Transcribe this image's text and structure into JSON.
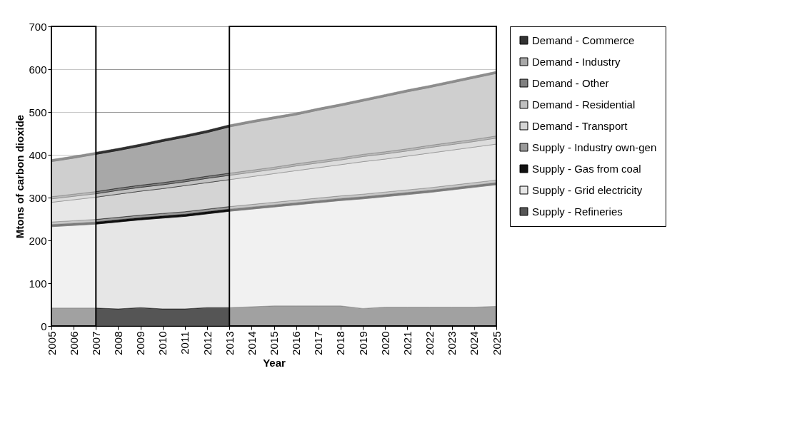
{
  "chart_data": {
    "type": "area",
    "stacked": true,
    "xlabel": "Year",
    "ylabel": "Mtons of carbon dioxide",
    "x": [
      2005,
      2006,
      2007,
      2008,
      2009,
      2010,
      2011,
      2012,
      2013,
      2014,
      2015,
      2016,
      2017,
      2018,
      2019,
      2020,
      2021,
      2022,
      2023,
      2024,
      2025
    ],
    "xlim": [
      2005,
      2025
    ],
    "xticks": [
      2005,
      2006,
      2007,
      2008,
      2009,
      2010,
      2011,
      2012,
      2013,
      2014,
      2015,
      2016,
      2017,
      2018,
      2019,
      2020,
      2021,
      2022,
      2023,
      2024,
      2025
    ],
    "ylim": [
      0,
      700
    ],
    "yticks": [
      0,
      100,
      200,
      300,
      400,
      500,
      600,
      700
    ],
    "grid": "y",
    "legend": "right",
    "series": [
      {
        "name": "Supply - Refineries",
        "color": "#555555",
        "values": [
          42,
          42,
          42,
          40,
          43,
          40,
          40,
          43,
          43,
          45,
          47,
          47,
          47,
          47,
          41,
          44,
          44,
          44,
          44,
          44,
          46
        ]
      },
      {
        "name": "Supply - Grid electricity",
        "color": "#e6e6e6",
        "values": [
          190,
          193,
          196,
          203,
          205,
          212,
          216,
          219,
          225,
          228,
          231,
          236,
          241,
          246,
          256,
          258,
          263,
          268,
          274,
          280,
          284
        ]
      },
      {
        "name": "Supply - Gas from coal",
        "color": "#111111",
        "values": [
          5,
          5,
          5,
          5,
          5,
          5,
          5,
          5,
          5,
          5,
          5,
          5,
          5,
          5,
          5,
          5,
          5,
          5,
          5,
          5,
          5
        ]
      },
      {
        "name": "Supply - Industry own-gen",
        "color": "#9a9a9a",
        "values": [
          6,
          6,
          6,
          6,
          6,
          6,
          6,
          6,
          6,
          6,
          6,
          6,
          6,
          6,
          6,
          6,
          6,
          6,
          6,
          6,
          6
        ]
      },
      {
        "name": "Demand - Transport",
        "color": "#d4d4d4",
        "values": [
          46,
          49,
          52,
          54,
          56,
          58,
          61,
          62,
          63,
          65,
          67,
          69,
          71,
          73,
          76,
          77,
          79,
          81,
          82,
          83,
          84
        ]
      },
      {
        "name": "Demand - Residential",
        "color": "#c0c0c0",
        "values": [
          8,
          8,
          8,
          9,
          9,
          9,
          9,
          10,
          10,
          10,
          10,
          11,
          11,
          11,
          12,
          12,
          12,
          13,
          13,
          13,
          14
        ]
      },
      {
        "name": "Demand - Other",
        "color": "#808080",
        "values": [
          5,
          5,
          5,
          5,
          5,
          5,
          5,
          5,
          5,
          5,
          5,
          5,
          5,
          5,
          5,
          5,
          5,
          5,
          5,
          5,
          5
        ]
      },
      {
        "name": "Demand - Industry",
        "color": "#a8a8a8",
        "values": [
          82,
          84,
          87,
          88,
          91,
          96,
          99,
          102,
          108,
          111,
          113,
          114,
          118,
          121,
          124,
          129,
          133,
          135,
          139,
          143,
          146
        ]
      },
      {
        "name": "Demand - Commerce",
        "color": "#333333",
        "values": [
          5,
          5,
          5,
          5,
          5,
          5,
          5,
          5,
          5,
          5,
          5,
          5,
          5,
          5,
          5,
          5,
          5,
          5,
          5,
          5,
          5
        ]
      }
    ],
    "bands": [
      {
        "axis": "x",
        "from": 2005,
        "to": 2007,
        "color": "#ffffff"
      },
      {
        "axis": "x",
        "from": 2013,
        "to": 2025,
        "color": "#ffffff"
      }
    ]
  }
}
